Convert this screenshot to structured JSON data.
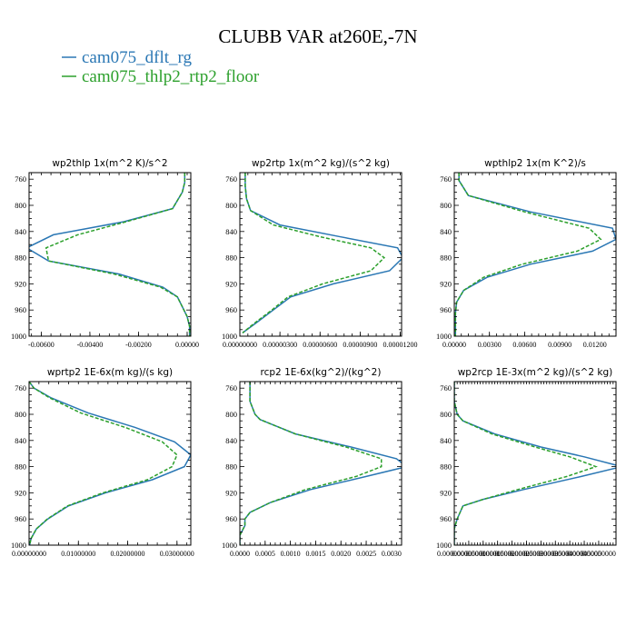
{
  "figure": {
    "title": "CLUBB VAR at260E,-7N",
    "legend": [
      {
        "label": "cam075_dflt_rg",
        "color": "#2a77b4",
        "dash": "solid"
      },
      {
        "label": "cam075_thlp2_rtp2_floor",
        "color": "#2ca02c",
        "dash": "dashed"
      }
    ]
  },
  "chart_data": [
    {
      "type": "line",
      "title": "wp2thlp   1x(m^2 K)/s^2",
      "xlim": [
        -0.0065,
        0.00015
      ],
      "ylim": [
        1000,
        750
      ],
      "xticks": [
        {
          "v": -0.006,
          "label": "-0.00600"
        },
        {
          "v": -0.004,
          "label": "-0.00400"
        },
        {
          "v": -0.002,
          "label": "-0.00200"
        },
        {
          "v": 0.0,
          "label": "0.00000"
        }
      ],
      "yticks": [
        760,
        800,
        840,
        880,
        920,
        960,
        1000
      ],
      "series": [
        {
          "name": "cam075_dflt_rg",
          "y": [
            750,
            765,
            780,
            805,
            825,
            845,
            865,
            885,
            905,
            925,
            940,
            955,
            970,
            985,
            1000
          ],
          "x": [
            -0.0001,
            -0.0001,
            -0.0002,
            -0.0006,
            -0.0026,
            -0.0055,
            -0.0066,
            -0.0057,
            -0.0028,
            -0.001,
            -0.0004,
            -0.0002,
            0.0,
            0.0001,
            0.0001
          ]
        },
        {
          "name": "cam075_thlp2_rtp2_floor",
          "y": [
            750,
            765,
            780,
            805,
            825,
            845,
            865,
            885,
            905,
            925,
            940,
            955,
            970,
            985,
            1000
          ],
          "x": [
            -0.0001,
            -0.0001,
            -0.0002,
            -0.0006,
            -0.0025,
            -0.0045,
            -0.0058,
            -0.0057,
            -0.003,
            -0.0011,
            -0.0004,
            -0.0002,
            0.0,
            0.0001,
            0.0001
          ]
        }
      ]
    },
    {
      "type": "line",
      "title": "wp2rtp   1x(m^2 kg)/(s^2 kg)",
      "xlim": [
        0.0,
        1.21e-05
      ],
      "ylim": [
        1000,
        750
      ],
      "xticks": [
        {
          "v": 0.0,
          "label": "0.00000000"
        },
        {
          "v": 3e-06,
          "label": "0.00000300"
        },
        {
          "v": 6e-06,
          "label": "0.00000600"
        },
        {
          "v": 9e-06,
          "label": "0.00000900"
        },
        {
          "v": 1.2e-05,
          "label": "0.00001200"
        }
      ],
      "yticks": [
        760,
        800,
        840,
        880,
        920,
        960,
        1000
      ],
      "series": [
        {
          "name": "cam075_dflt_rg",
          "y": [
            750,
            770,
            790,
            808,
            830,
            848,
            865,
            880,
            900,
            920,
            940,
            960,
            980,
            995
          ],
          "x": [
            4e-07,
            4e-07,
            5e-07,
            8e-07,
            3e-06,
            7.5e-06,
            1.18e-05,
            1.22e-05,
            1.12e-05,
            7e-06,
            3.8e-06,
            2.5e-06,
            1.2e-06,
            2e-07
          ]
        },
        {
          "name": "cam075_thlp2_rtp2_floor",
          "y": [
            750,
            770,
            790,
            808,
            830,
            848,
            865,
            880,
            900,
            920,
            940,
            960,
            980,
            995
          ],
          "x": [
            4e-07,
            4e-07,
            5e-07,
            8e-07,
            2.5e-06,
            6e-06,
            9.8e-06,
            1.08e-05,
            9.8e-06,
            6.2e-06,
            3.6e-06,
            2.4e-06,
            1.1e-06,
            2e-07
          ]
        }
      ]
    },
    {
      "type": "line",
      "title": "wpthlp2   1x(m K^2)/s",
      "xlim": [
        0.0,
        0.0138
      ],
      "ylim": [
        1000,
        750
      ],
      "xticks": [
        {
          "v": 0.0,
          "label": "0.00000"
        },
        {
          "v": 0.003,
          "label": "0.00300"
        },
        {
          "v": 0.006,
          "label": "0.00600"
        },
        {
          "v": 0.009,
          "label": "0.00900"
        },
        {
          "v": 0.012,
          "label": "0.01200"
        }
      ],
      "yticks": [
        760,
        800,
        840,
        880,
        920,
        960,
        1000
      ],
      "series": [
        {
          "name": "cam075_dflt_rg",
          "y": [
            750,
            762,
            785,
            810,
            835,
            852,
            870,
            890,
            910,
            930,
            948,
            965,
            985,
            1000
          ],
          "x": [
            0.0004,
            0.0004,
            0.0012,
            0.0065,
            0.0135,
            0.0138,
            0.0118,
            0.0065,
            0.0028,
            0.0008,
            0.0002,
            0.0001,
            0.0001,
            0.0001
          ]
        },
        {
          "name": "cam075_thlp2_rtp2_floor",
          "y": [
            750,
            762,
            785,
            810,
            835,
            852,
            870,
            890,
            910,
            930,
            948,
            965,
            985,
            1000
          ],
          "x": [
            0.0004,
            0.0004,
            0.0012,
            0.006,
            0.0115,
            0.0125,
            0.0105,
            0.0058,
            0.0025,
            0.0008,
            0.0002,
            0.0001,
            0.0001,
            0.0001
          ]
        }
      ]
    },
    {
      "type": "line",
      "title": "wprtp2   1E-6x(m kg)/(s kg)",
      "xlim": [
        0.0,
        0.0328
      ],
      "ylim": [
        1000,
        750
      ],
      "xticks": [
        {
          "v": 0.0,
          "label": "0.00000000"
        },
        {
          "v": 0.01,
          "label": "0.01000000"
        },
        {
          "v": 0.02,
          "label": "0.02000000"
        },
        {
          "v": 0.03,
          "label": "0.03000000"
        }
      ],
      "yticks": [
        760,
        800,
        840,
        880,
        920,
        960,
        1000
      ],
      "series": [
        {
          "name": "cam075_dflt_rg",
          "y": [
            750,
            760,
            775,
            798,
            820,
            842,
            862,
            880,
            900,
            920,
            940,
            960,
            975,
            990,
            1000
          ],
          "x": [
            0.0,
            0.001,
            0.0045,
            0.012,
            0.0215,
            0.0295,
            0.0328,
            0.0315,
            0.025,
            0.0155,
            0.008,
            0.0038,
            0.0015,
            0.0004,
            0.0001
          ]
        },
        {
          "name": "cam075_thlp2_rtp2_floor",
          "y": [
            750,
            760,
            775,
            798,
            820,
            842,
            862,
            880,
            900,
            920,
            940,
            960,
            975,
            990,
            1000
          ],
          "x": [
            0.0,
            0.001,
            0.0042,
            0.0105,
            0.0195,
            0.027,
            0.03,
            0.029,
            0.024,
            0.015,
            0.0078,
            0.0037,
            0.0015,
            0.0004,
            0.0001
          ]
        }
      ]
    },
    {
      "type": "line",
      "title": "rcp2   1E-6x(kg^2)/(kg^2)",
      "xlim": [
        0.0,
        0.0032
      ],
      "ylim": [
        1000,
        750
      ],
      "xticks": [
        {
          "v": 0.0,
          "label": "0.0000"
        },
        {
          "v": 0.0005,
          "label": "0.0005"
        },
        {
          "v": 0.001,
          "label": "0.0010"
        },
        {
          "v": 0.0015,
          "label": "0.0015"
        },
        {
          "v": 0.002,
          "label": "0.0020"
        },
        {
          "v": 0.0025,
          "label": "0.0025"
        },
        {
          "v": 0.003,
          "label": "0.0030"
        }
      ],
      "yticks": [
        760,
        800,
        840,
        880,
        920,
        960,
        1000
      ],
      "series": [
        {
          "name": "cam075_dflt_rg",
          "y": [
            750,
            780,
            800,
            808,
            830,
            850,
            868,
            880,
            895,
            915,
            935,
            950,
            960,
            970,
            985,
            1000
          ],
          "x": [
            0.0002,
            0.0002,
            0.0003,
            0.0004,
            0.0011,
            0.0022,
            0.0031,
            0.0033,
            0.0025,
            0.0014,
            0.0006,
            0.0002,
            0.0001,
            0.0001,
            0.0,
            0.0
          ]
        },
        {
          "name": "cam075_thlp2_rtp2_floor",
          "y": [
            750,
            780,
            800,
            808,
            830,
            850,
            868,
            880,
            895,
            915,
            935,
            950,
            960,
            970,
            985,
            1000
          ],
          "x": [
            0.0002,
            0.0002,
            0.0003,
            0.0004,
            0.0011,
            0.0021,
            0.0028,
            0.0028,
            0.0023,
            0.0013,
            0.0006,
            0.0002,
            0.0001,
            0.0001,
            0.0,
            0.0
          ]
        }
      ]
    },
    {
      "type": "line",
      "title": "wp2rcp   1E-3x(m^2 kg)/(s^2 kg)",
      "xlim": [
        0.0,
        0.00056
      ],
      "ylim": [
        1000,
        750
      ],
      "xticks": [
        {
          "v": 0.0,
          "label": "0.00000000"
        },
        {
          "v": 5e-05,
          "label": "0.00005000"
        },
        {
          "v": 0.0001,
          "label": "0.00010000"
        },
        {
          "v": 0.00015,
          "label": "0.00015000"
        },
        {
          "v": 0.0002,
          "label": "0.00020000"
        },
        {
          "v": 0.00025,
          "label": "0.00025000"
        },
        {
          "v": 0.0003,
          "label": "0.00030000"
        },
        {
          "v": 0.00035,
          "label": "0.00035000"
        },
        {
          "v": 0.0004,
          "label": "0.00040000"
        },
        {
          "v": 0.00045,
          "label": "0.00045000"
        },
        {
          "v": 0.0005,
          "label": "0.00050000"
        }
      ],
      "yticks": [
        760,
        800,
        840,
        880,
        920,
        960,
        1000
      ],
      "series": [
        {
          "name": "cam075_dflt_rg",
          "y": [
            750,
            780,
            800,
            810,
            830,
            850,
            865,
            880,
            895,
            915,
            930,
            940,
            950,
            960,
            975,
            1000
          ],
          "x": [
            0.0,
            0.0,
            1e-05,
            3e-05,
            0.00014,
            0.0003,
            0.00045,
            0.00058,
            0.00044,
            0.00024,
            0.0001,
            3e-05,
            2e-05,
            1e-05,
            0.0,
            0.0
          ]
        },
        {
          "name": "cam075_thlp2_rtp2_floor",
          "y": [
            750,
            780,
            800,
            810,
            830,
            850,
            865,
            880,
            895,
            915,
            930,
            940,
            950,
            960,
            975,
            1000
          ],
          "x": [
            0.0,
            0.0,
            1e-05,
            3e-05,
            0.00013,
            0.00028,
            0.0004,
            0.00049,
            0.00039,
            0.00022,
            0.0001,
            3e-05,
            2e-05,
            1e-05,
            0.0,
            0.0
          ]
        }
      ]
    }
  ]
}
